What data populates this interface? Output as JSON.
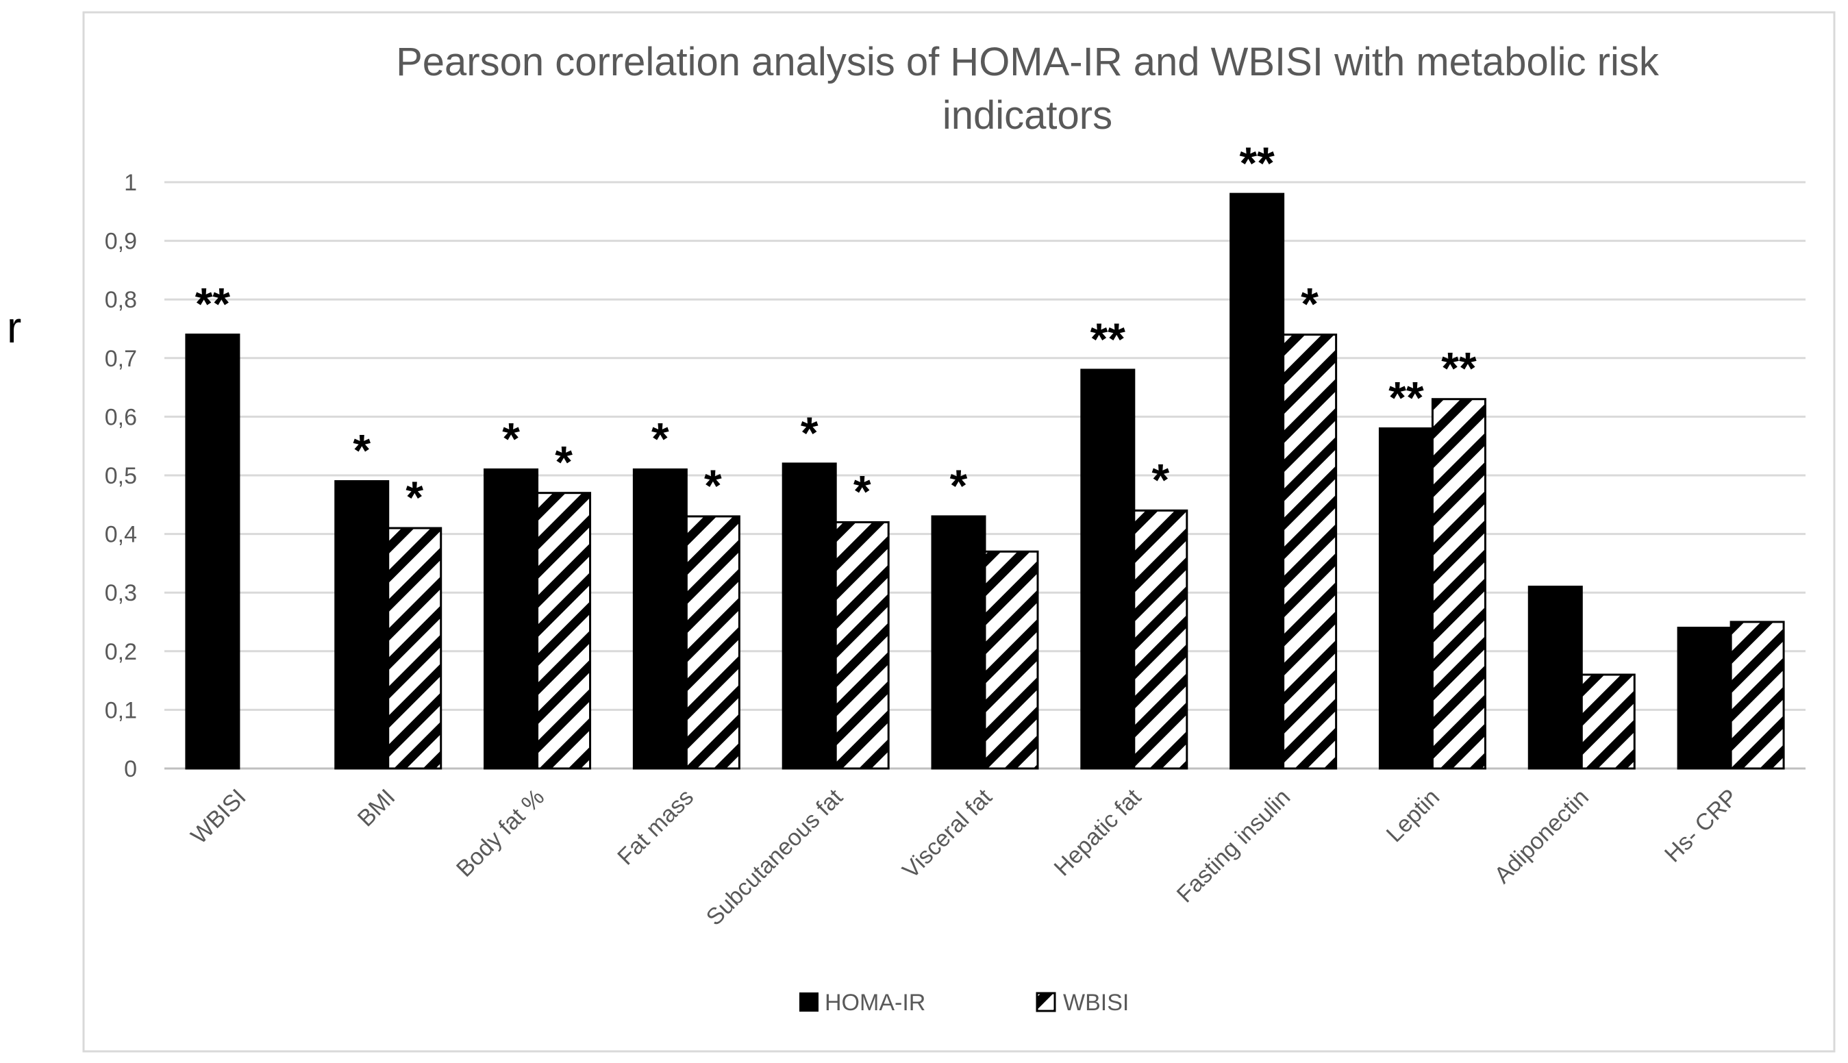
{
  "chart_data": {
    "type": "bar",
    "title_lines": [
      "Pearson correlation analysis of HOMA-IR and WBISI with metabolic risk",
      "indicators"
    ],
    "ylabel": "r",
    "xlabel": "",
    "ylim": [
      0,
      1
    ],
    "yticks": [
      0,
      0.1,
      0.2,
      0.3,
      0.4,
      0.5,
      0.6,
      0.7,
      0.8,
      0.9,
      1
    ],
    "ytick_labels": [
      "0",
      "0,1",
      "0,2",
      "0,3",
      "0,4",
      "0,5",
      "0,6",
      "0,7",
      "0,8",
      "0,9",
      "1"
    ],
    "grid": true,
    "legend_position": "bottom-center",
    "categories": [
      "WBISI",
      "BMI",
      "Body fat %",
      "Fat mass",
      "Subcutaneous fat",
      "Visceral fat",
      "Hepatic fat",
      "Fasting insulin",
      "Leptin",
      "Adiponectin",
      "Hs- CRP"
    ],
    "series": [
      {
        "name": "HOMA-IR",
        "pattern": "solid",
        "color": "#000000",
        "values": [
          0.74,
          0.49,
          0.51,
          0.51,
          0.52,
          0.43,
          0.68,
          0.98,
          0.58,
          0.31,
          0.24
        ],
        "significance": [
          "**",
          "*",
          "*",
          "*",
          "*",
          "*",
          "**",
          "**",
          "**",
          "",
          ""
        ]
      },
      {
        "name": "WBISI",
        "pattern": "diagonal-hatch",
        "color": "#000000",
        "values": [
          null,
          0.41,
          0.47,
          0.43,
          0.42,
          0.37,
          0.44,
          0.74,
          0.63,
          0.16,
          0.25
        ],
        "significance": [
          "",
          "*",
          "*",
          "*",
          "*",
          "",
          "*",
          "*",
          "**",
          "",
          ""
        ]
      }
    ]
  }
}
